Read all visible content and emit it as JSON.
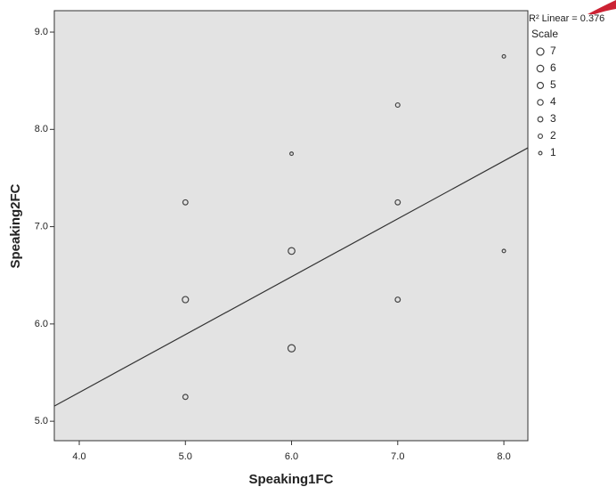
{
  "chart_data": {
    "type": "scatter",
    "xlabel": "Speaking1FC",
    "ylabel": "Speaking2FC",
    "xlim": [
      3.765,
      8.226
    ],
    "ylim": [
      4.8,
      9.22
    ],
    "xticks": [
      {
        "value": 4,
        "label": "4.0"
      },
      {
        "value": 5,
        "label": "5.0"
      },
      {
        "value": 6,
        "label": "6.0"
      },
      {
        "value": 7,
        "label": "7.0"
      },
      {
        "value": 8,
        "label": "8.0"
      }
    ],
    "yticks": [
      {
        "value": 5,
        "label": "5.0"
      },
      {
        "value": 6,
        "label": "6.0"
      },
      {
        "value": 7,
        "label": "7.0"
      },
      {
        "value": 8,
        "label": "8.0"
      },
      {
        "value": 9,
        "label": "9.0"
      }
    ],
    "series": [
      {
        "x": [
          5,
          5,
          5,
          6,
          6,
          6,
          7,
          7,
          7,
          8,
          8
        ],
        "values": [
          7.25,
          6.25,
          5.25,
          7.75,
          6.75,
          5.75,
          8.25,
          7.25,
          6.25,
          8.75,
          6.75
        ],
        "size": [
          3,
          5,
          3,
          1,
          6,
          7,
          2,
          3,
          3,
          1,
          1
        ],
        "color": "#444444"
      }
    ],
    "fit_line": {
      "x": [
        3.765,
        8.226
      ],
      "values": [
        5.156,
        7.81
      ],
      "color": "#333333"
    },
    "annotation": "R² Linear = 0.376",
    "size_legend": {
      "title": "Scale",
      "values": [
        7,
        6,
        5,
        4,
        3,
        2,
        1
      ]
    },
    "plot_background": "#e3e3e3"
  }
}
